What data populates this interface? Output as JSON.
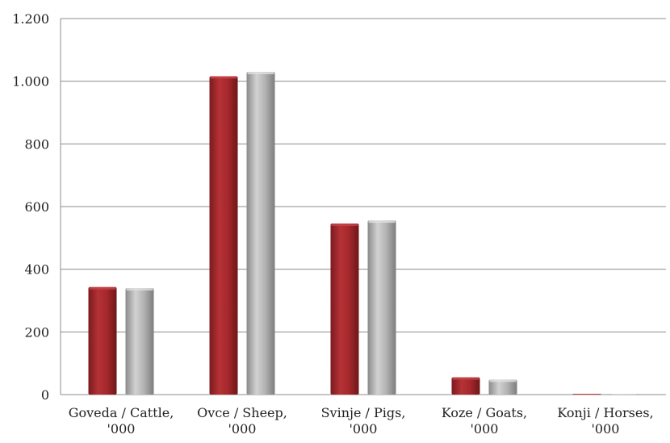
{
  "chart_data": {
    "type": "bar",
    "title": "",
    "xlabel": "",
    "ylabel": "",
    "categories": [
      [
        "Goveda / Cattle,",
        "'000"
      ],
      [
        "Ovce / Sheep,",
        "'000"
      ],
      [
        "Svinje / Pigs,",
        "'000"
      ],
      [
        "Koze / Goats,",
        "'000"
      ],
      [
        "Konji / Horses,",
        "'000"
      ]
    ],
    "series": [
      {
        "values": [
          343,
          1016,
          546,
          55,
          2
        ],
        "color": "#a5282c"
      },
      {
        "values": [
          340,
          1030,
          556,
          48,
          1
        ],
        "color": "#a6a6a6"
      }
    ],
    "ylim": [
      0,
      1200
    ],
    "yticks": [
      0,
      200,
      400,
      600,
      800,
      1000,
      1200
    ],
    "ytick_labels": [
      "0",
      "200",
      "400",
      "600",
      "800",
      "1.000",
      "1.200"
    ],
    "grid": true,
    "legend": "none"
  }
}
